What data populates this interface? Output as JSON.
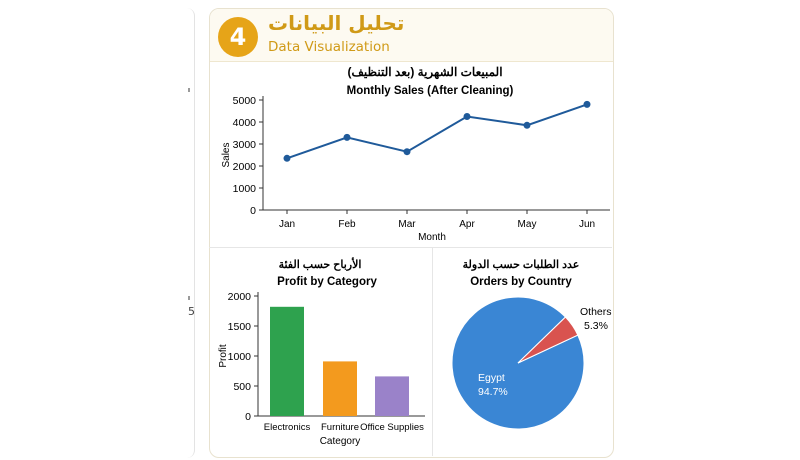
{
  "header": {
    "step_number": "4",
    "title_ar": "تحليل البيانات",
    "title_en": "Data Visualization",
    "accent_color": "#e6a418"
  },
  "side": {
    "char": "5"
  },
  "chart_data": [
    {
      "type": "line",
      "title_ar": "المبيعات الشهرية (بعد التنظيف)",
      "title": "Monthly Sales (After Cleaning)",
      "xlabel": "Month",
      "ylabel": "Sales",
      "categories": [
        "Jan",
        "Feb",
        "Mar",
        "Apr",
        "May",
        "Jun"
      ],
      "series": [
        {
          "values": [
            2350,
            3300,
            2650,
            4250,
            3850,
            4800
          ]
        }
      ],
      "yticks": [
        "0",
        "1000",
        "2000",
        "3000",
        "4000",
        "5000"
      ],
      "ylim": [
        0,
        5000
      ],
      "color": "#1f5a9a",
      "grid": false
    },
    {
      "type": "bar",
      "title_ar": "الأرباح حسب الفئة",
      "title": "Profit by Category",
      "xlabel": "Category",
      "ylabel": "Profit",
      "categories": [
        "Electronics",
        "Furniture",
        "Office Supplies"
      ],
      "values": [
        1820,
        910,
        660
      ],
      "colors": [
        "#2ea24e",
        "#f39a1e",
        "#9a82c9"
      ],
      "yticks": [
        "0",
        "500",
        "1000",
        "1500",
        "2000"
      ],
      "ylim": [
        0,
        2000
      ],
      "grid": false
    },
    {
      "type": "pie",
      "title_ar": "عدد الطلبات حسب الدولة",
      "title": "Orders by Country",
      "slices": [
        {
          "label": "Egypt",
          "pct_label": "94.7%",
          "value": 94.7,
          "color": "#3a86d4"
        },
        {
          "label": "Others",
          "pct_label": "5.3%",
          "value": 5.3,
          "color": "#d9534f"
        }
      ]
    }
  ]
}
